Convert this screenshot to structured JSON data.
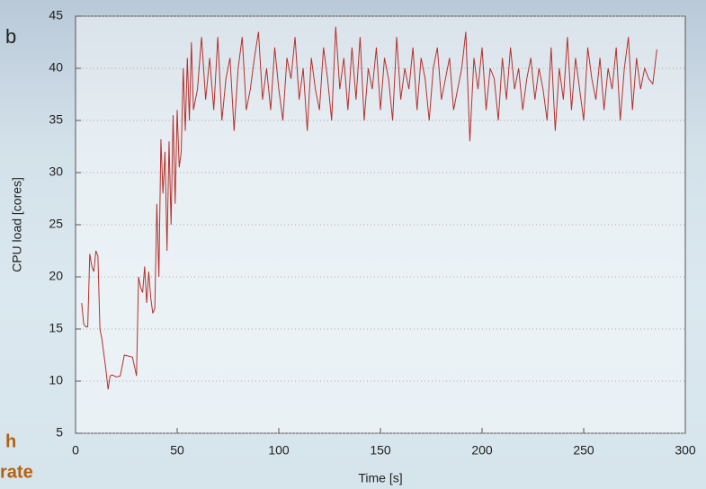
{
  "fragments": [
    "b",
    "h",
    "rate"
  ],
  "chart_data": {
    "type": "line",
    "xlabel": "Time [s]",
    "ylabel": "CPU load [cores]",
    "color": "#b5302c",
    "grid": true,
    "xlim": [
      0,
      300
    ],
    "ylim": [
      5,
      45
    ],
    "xticks": [
      0,
      50,
      100,
      150,
      200,
      250,
      300
    ],
    "yticks": [
      5,
      10,
      15,
      20,
      25,
      30,
      35,
      40,
      45
    ],
    "x": [
      3,
      4,
      5,
      6,
      7,
      8,
      9,
      10,
      11,
      12,
      13,
      14,
      15,
      16,
      17,
      18,
      20,
      22,
      24,
      26,
      28,
      30,
      31,
      32,
      33,
      34,
      35,
      36,
      37,
      38,
      39,
      40,
      41,
      42,
      43,
      44,
      45,
      46,
      47,
      48,
      49,
      50,
      51,
      52,
      53,
      54,
      55,
      56,
      57,
      58,
      60,
      62,
      64,
      66,
      68,
      70,
      72,
      74,
      76,
      78,
      80,
      82,
      84,
      86,
      88,
      90,
      92,
      94,
      96,
      98,
      100,
      102,
      104,
      106,
      108,
      110,
      112,
      114,
      116,
      118,
      120,
      122,
      124,
      126,
      128,
      130,
      132,
      134,
      136,
      138,
      140,
      142,
      144,
      146,
      148,
      150,
      152,
      154,
      156,
      158,
      160,
      162,
      164,
      166,
      168,
      170,
      172,
      174,
      176,
      178,
      180,
      182,
      184,
      186,
      188,
      190,
      192,
      194,
      196,
      198,
      200,
      202,
      204,
      206,
      208,
      210,
      212,
      214,
      216,
      218,
      220,
      222,
      224,
      226,
      228,
      230,
      232,
      234,
      236,
      238,
      240,
      242,
      244,
      246,
      248,
      250,
      252,
      254,
      256,
      258,
      260,
      262,
      264,
      266,
      268,
      270,
      272,
      274,
      276,
      278,
      280,
      282,
      284,
      286
    ],
    "values": [
      17.5,
      15.5,
      15.2,
      15.2,
      22.2,
      21,
      20.5,
      22.5,
      22,
      15,
      14,
      12.5,
      11,
      9.2,
      10.5,
      10.6,
      10.4,
      10.5,
      12.5,
      12.4,
      12.3,
      10.5,
      20,
      19,
      18.5,
      21,
      17.5,
      20.5,
      18,
      16.5,
      17,
      27,
      20,
      33.2,
      28,
      32,
      22.5,
      33,
      25,
      35.5,
      27,
      36,
      30.5,
      32,
      40,
      34,
      41,
      35,
      42.5,
      36,
      38,
      43,
      37,
      41,
      36,
      43,
      35,
      39,
      41,
      34,
      40,
      43,
      36,
      38,
      41,
      43.5,
      37,
      40,
      36,
      42,
      38,
      35,
      41,
      39,
      43,
      37,
      40,
      34,
      41,
      38,
      36,
      42,
      39,
      35,
      44,
      38,
      41,
      36,
      42,
      37,
      43,
      35,
      40,
      38,
      42,
      36,
      41,
      39,
      35,
      43,
      37,
      40,
      38,
      42,
      36,
      41,
      39,
      35,
      40,
      42,
      37,
      39,
      41,
      36,
      38,
      40,
      43.5,
      33,
      41,
      38,
      42,
      36,
      40,
      39,
      35,
      41,
      37,
      42,
      38,
      40,
      36,
      39,
      41,
      37,
      40,
      38,
      35,
      42,
      34,
      40,
      37,
      43,
      36,
      41,
      38,
      35,
      42,
      39,
      37,
      41,
      36,
      40,
      38,
      42,
      35,
      40,
      43,
      36,
      41,
      38,
      40,
      39,
      38.5,
      41.8
    ]
  }
}
